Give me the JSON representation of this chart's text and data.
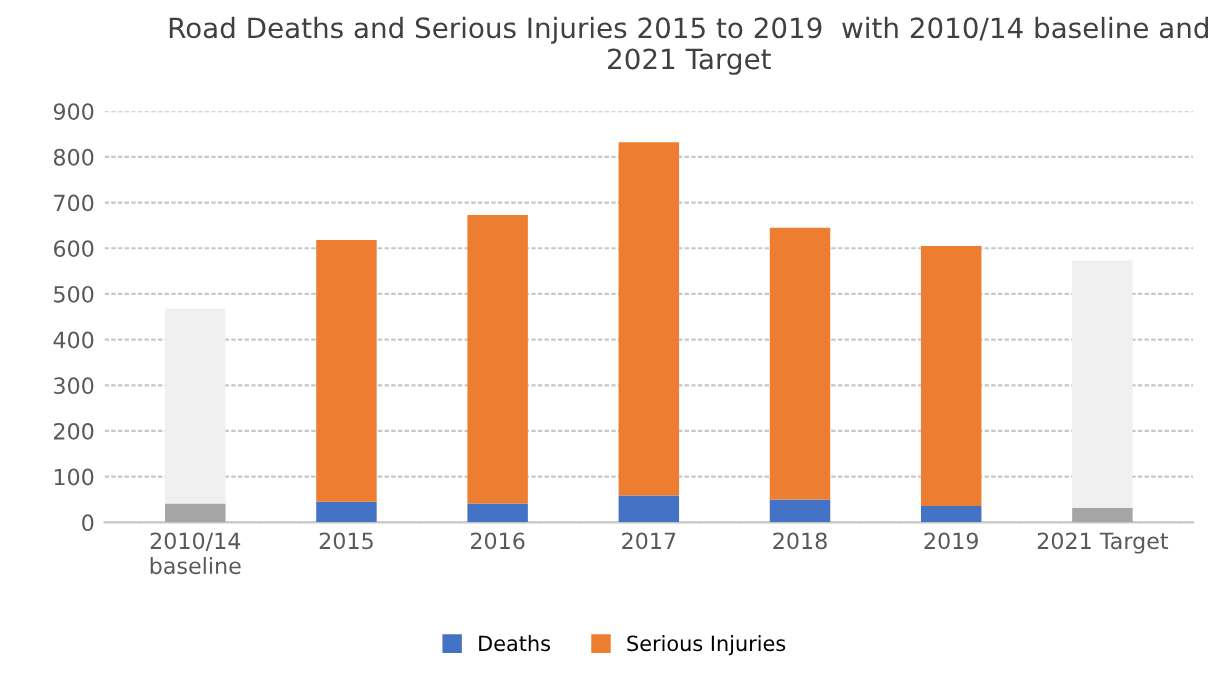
{
  "chart_data": {
    "type": "bar",
    "stacked": true,
    "title": "Road Deaths and Serious Injuries 2015 to 2019  with 2010/14 baseline and 2021 Target",
    "categories": [
      "2010/14\nbaseline",
      "2015",
      "2016",
      "2017",
      "2018",
      "2019",
      "2021 Target"
    ],
    "series": [
      {
        "name": "Deaths",
        "color": "#4472c4",
        "colors": [
          "#a5a5a5",
          "#4472c4",
          "#4472c4",
          "#4472c4",
          "#4472c4",
          "#4472c4",
          "#a5a5a5"
        ],
        "values": [
          41,
          45,
          41,
          59,
          50,
          36,
          32
        ]
      },
      {
        "name": "Serious Injuries",
        "color": "#ed7d31",
        "colors": [
          "#f0f0f0",
          "#ed7d31",
          "#ed7d31",
          "#ed7d31",
          "#ed7d31",
          "#ed7d31",
          "#f0f0f0"
        ],
        "values": [
          427,
          573,
          632,
          773,
          595,
          569,
          541
        ]
      }
    ],
    "ylim": [
      0,
      900
    ],
    "yticks": [
      0,
      100,
      200,
      300,
      400,
      500,
      600,
      700,
      800,
      900
    ],
    "grid": "y",
    "legend": "bottom"
  }
}
